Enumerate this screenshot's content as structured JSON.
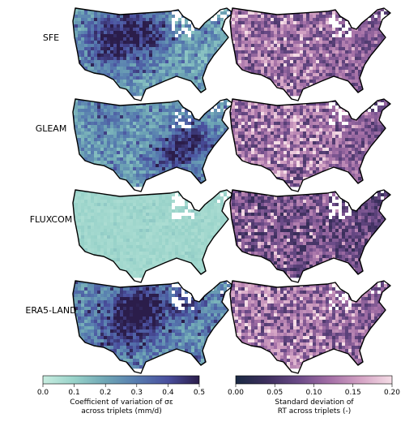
{
  "rows": [
    {
      "label": "SFE"
    },
    {
      "label": "GLEAM"
    },
    {
      "label": "FLUXCOM"
    },
    {
      "label": "ERA5-LAND"
    }
  ],
  "maps_left": [
    {
      "base": 0.12,
      "var": 0.33,
      "hotspots": "west",
      "cells_flag": "hi"
    },
    {
      "base": 0.14,
      "var": 0.3,
      "hotspots": "southeast",
      "cells_flag": "mid"
    },
    {
      "base": 0.06,
      "var": 0.07,
      "hotspots": "none",
      "cells_flag": "lo"
    },
    {
      "base": 0.16,
      "var": 0.34,
      "hotspots": "central",
      "cells_flag": "hi"
    }
  ],
  "maps_right": [
    {
      "base": 0.055,
      "var": 0.1
    },
    {
      "base": 0.05,
      "var": 0.11
    },
    {
      "base": 0.03,
      "var": 0.1
    },
    {
      "base": 0.055,
      "var": 0.11
    }
  ],
  "colorbar_left": {
    "label_line1": "Coefficient of variation of σε",
    "label_line2": "across triplets (mm/d)",
    "min": 0.0,
    "max": 0.5,
    "ticks": [
      "0.0",
      "0.1",
      "0.2",
      "0.3",
      "0.4",
      "0.5"
    ],
    "colors": [
      "#c8ede0",
      "#98d2c9",
      "#6fa6b5",
      "#577caf",
      "#4a4f9e",
      "#2b1d4a"
    ]
  },
  "colorbar_right": {
    "label_line1": "Standard deviation of",
    "label_line2": "RT across triplets (-)",
    "min": 0.0,
    "max": 0.2,
    "ticks": [
      "0.00",
      "0.05",
      "0.10",
      "0.15",
      "0.20"
    ],
    "colors": [
      "#1b2a44",
      "#3d2f5e",
      "#6a4a87",
      "#a36fa6",
      "#d4a3c4",
      "#f5dde6"
    ]
  }
}
